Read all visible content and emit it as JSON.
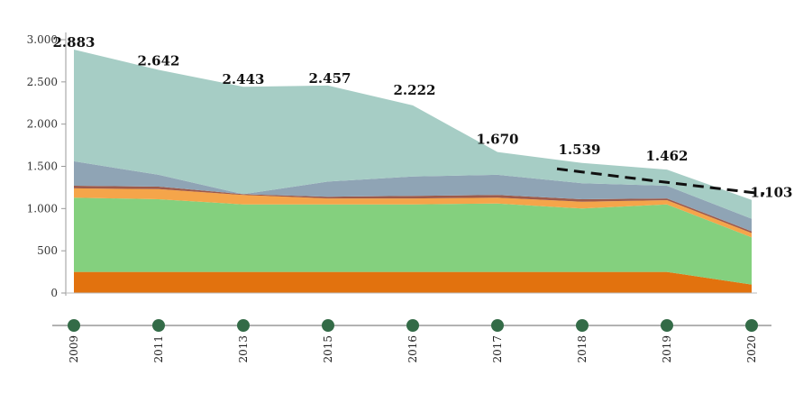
{
  "chart_data": {
    "type": "area",
    "categories": [
      "2009",
      "2011",
      "2013",
      "2015",
      "2016",
      "2017",
      "2018",
      "2019",
      "2020"
    ],
    "ylim": [
      0,
      3000
    ],
    "yticks": [
      {
        "value": 0,
        "label": "0"
      },
      {
        "value": 500,
        "label": "500"
      },
      {
        "value": 1000,
        "label": "1.000"
      },
      {
        "value": 1500,
        "label": "1.500"
      },
      {
        "value": 2000,
        "label": "2.000"
      },
      {
        "value": 2500,
        "label": "2.500"
      },
      {
        "value": 3000,
        "label": "3.000"
      }
    ],
    "stack_order_bottom_to_top": true,
    "series": [
      {
        "color": "#e2720e",
        "values": [
          250,
          250,
          250,
          250,
          250,
          250,
          250,
          250,
          100
        ]
      },
      {
        "color": "#84d07e",
        "values": [
          880,
          860,
          800,
          800,
          800,
          810,
          750,
          800,
          560
        ]
      },
      {
        "color": "#f5a54a",
        "values": [
          110,
          120,
          110,
          70,
          70,
          70,
          80,
          50,
          50
        ]
      },
      {
        "color": "#9e5a4a",
        "values": [
          30,
          30,
          10,
          20,
          30,
          30,
          30,
          20,
          20
        ]
      },
      {
        "color": "#8fa4b5",
        "values": [
          290,
          140,
          0,
          180,
          230,
          240,
          190,
          150,
          150
        ]
      },
      {
        "color": "#a6cdc5",
        "values": [
          1323,
          1242,
          1273,
          1137,
          842,
          270,
          239,
          192,
          223
        ]
      }
    ],
    "totals": [
      2883,
      2642,
      2443,
      2457,
      2222,
      1670,
      1539,
      1462,
      1103
    ],
    "total_labels": [
      "2.883",
      "2.642",
      "2.443",
      "2.457",
      "2.222",
      "1.670",
      "1.539",
      "1.462",
      "1.103"
    ],
    "trend_line": {
      "style": "dashed",
      "color": "#111111",
      "start_category": "2018",
      "end_category": "2020",
      "values": [
        1470,
        1310,
        1190
      ]
    },
    "timeline_marker_color": "#336b47",
    "grid": false,
    "legend": "none"
  }
}
